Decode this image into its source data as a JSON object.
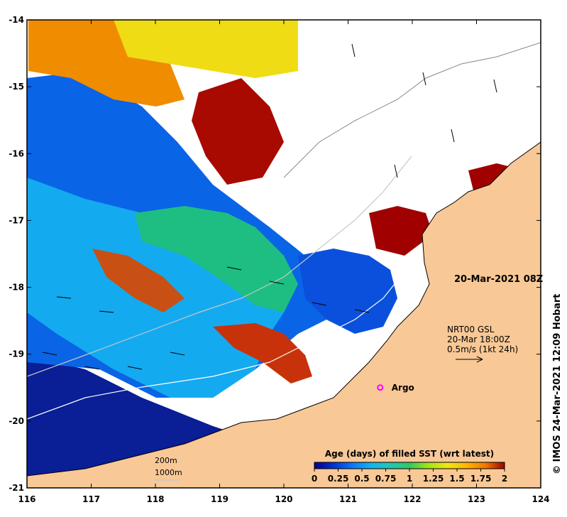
{
  "map": {
    "lon_ticks": [
      "116",
      "117",
      "118",
      "119",
      "120",
      "121",
      "122",
      "123",
      "124"
    ],
    "lat_ticks": [
      "-14",
      "-15",
      "-16",
      "-17",
      "-18",
      "-19",
      "-20",
      "-21"
    ],
    "lon_range": [
      116,
      124
    ],
    "lat_range": [
      -21,
      -14
    ],
    "timestamp": "20-Mar-2021 08Z",
    "current_note": {
      "line1": "NRT00 GSL",
      "line2": "20-Mar 18:00Z",
      "line3": "0.5m/s (1kt 24h)"
    },
    "argo_label": "Argo",
    "argo_position": {
      "lon": 121.5,
      "lat": -19.5
    },
    "isobaths": {
      "a": "200m",
      "b": "1000m"
    },
    "colorbar": {
      "title": "Age (days) of filled SST (wrt latest)",
      "labels": [
        "0",
        "0.25",
        "0.5",
        "0.75",
        "1",
        "1.25",
        "1.5",
        "1.75",
        "2"
      ],
      "range": [
        0,
        2
      ]
    },
    "credit": "© IMOS 24-Mar-2021 12:09 Hobart",
    "colors": {
      "land": "#f8c896",
      "argo": "#ff00ff",
      "iso_200": "#ffffff",
      "iso_1000": "#c8c8c8",
      "ramp": [
        "#00008c",
        "#0032d2",
        "#0a78ff",
        "#14b4f0",
        "#1ec8b4",
        "#32c864",
        "#a0e614",
        "#f0e614",
        "#ffb400",
        "#f07800",
        "#d23c00",
        "#a00000"
      ]
    }
  }
}
